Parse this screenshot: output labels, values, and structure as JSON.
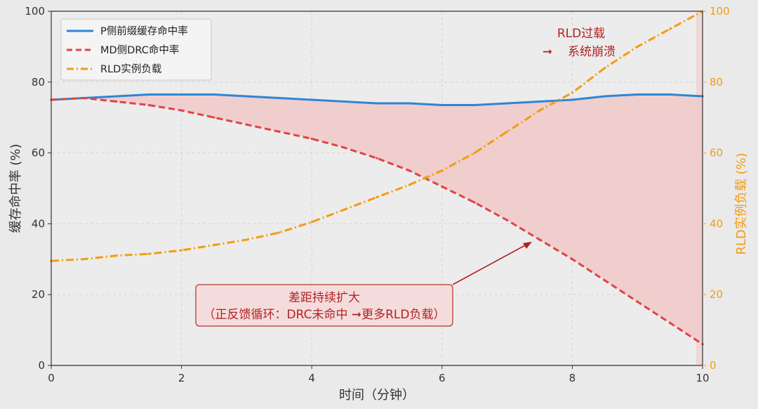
{
  "chart_data": {
    "type": "line",
    "title": "",
    "xlabel": "时间（分钟）",
    "ylabel_left": "缓存命中率 (%)",
    "ylabel_right": "RLD实例负载 (%)",
    "xlim": [
      0,
      10
    ],
    "ylim_left": [
      0,
      100
    ],
    "ylim_right": [
      0,
      100
    ],
    "x_ticks": [
      "0",
      "2",
      "4",
      "6",
      "8",
      "10"
    ],
    "y_ticks_left": [
      "0",
      "20",
      "40",
      "60",
      "80",
      "100"
    ],
    "y_ticks_right": [
      "0",
      "20",
      "40",
      "60",
      "80",
      "100"
    ],
    "grid": true,
    "legend_position": "top-left",
    "colors": {
      "p_side": "#2e86d4",
      "md_side": "#e04444",
      "rld": "#f39c12",
      "annotation": "#b22222",
      "gap_fill": "#f1c9c9"
    },
    "series": [
      {
        "name": "P侧前缀缓存命中率",
        "axis": "left",
        "style": "solid",
        "x": [
          0,
          0.5,
          1,
          1.5,
          2,
          2.5,
          3,
          3.5,
          4,
          4.5,
          5,
          5.5,
          6,
          6.5,
          7,
          7.5,
          8,
          8.5,
          9,
          9.5,
          10
        ],
        "values": [
          75,
          75.5,
          76,
          76.5,
          76.5,
          76.5,
          76,
          75.5,
          75,
          74.5,
          74,
          74,
          73.5,
          73.5,
          74,
          74.5,
          75,
          76,
          76.5,
          76.5,
          76
        ]
      },
      {
        "name": "MD侧DRC命中率",
        "axis": "left",
        "style": "dashed",
        "x": [
          0,
          0.5,
          1,
          1.5,
          2,
          2.5,
          3,
          3.5,
          4,
          4.5,
          5,
          5.5,
          6,
          6.5,
          7,
          7.5,
          8,
          8.5,
          9,
          9.5,
          10
        ],
        "values": [
          75,
          75.5,
          74.5,
          73.5,
          72,
          70,
          68,
          66,
          64,
          61.5,
          58.5,
          55,
          50.5,
          46,
          41,
          35.5,
          30,
          24,
          18,
          12,
          6
        ]
      },
      {
        "name": "RLD实例负载",
        "axis": "right",
        "style": "dashdot",
        "x": [
          0,
          0.5,
          1,
          1.5,
          2,
          2.5,
          3,
          3.5,
          4,
          4.5,
          5,
          5.5,
          6,
          6.5,
          7,
          7.5,
          8,
          8.5,
          9,
          9.5,
          10
        ],
        "values": [
          29.5,
          30,
          31,
          31.5,
          32.5,
          34,
          35.5,
          37.5,
          40.5,
          44,
          47.5,
          51,
          55,
          60,
          66,
          72,
          77,
          84,
          90,
          95,
          100
        ]
      }
    ],
    "annotations": [
      {
        "text": "RLD过载",
        "at": {
          "x": 7.55,
          "y_right": 88
        }
      },
      {
        "text": "系统崩溃",
        "at": {
          "x": 7.55,
          "y_right": 88
        }
      },
      {
        "text": "差距持续扩大",
        "at": {
          "x": 7.4,
          "y_left": 35
        }
      },
      {
        "text": "（正反馈循环：DRC未命中 ➞更多RLD负载）",
        "at": {
          "x": 7.4,
          "y_left": 35
        }
      }
    ]
  }
}
